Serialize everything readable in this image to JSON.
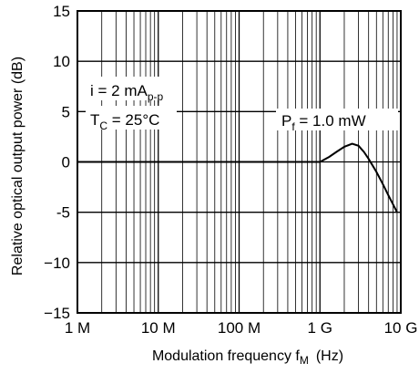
{
  "chart_data": {
    "type": "line",
    "xscale": "log",
    "xlim": [
      1000000,
      10000000000
    ],
    "ylim": [
      -15,
      15
    ],
    "grid": true,
    "ylabel": "Relative optical output power (dB)",
    "xlabel_main": "Modulation frequency f",
    "xlabel_sub": "M",
    "xlabel_unit": "(Hz)",
    "x_ticks": [
      {
        "value": 1000000,
        "label": "1 M"
      },
      {
        "value": 10000000,
        "label": "10 M"
      },
      {
        "value": 100000000,
        "label": "100 M"
      },
      {
        "value": 1000000000,
        "label": "1 G"
      },
      {
        "value": 10000000000,
        "label": "10 G"
      }
    ],
    "y_ticks": [
      {
        "value": 15,
        "label": "15"
      },
      {
        "value": 10,
        "label": "10"
      },
      {
        "value": 5,
        "label": "5"
      },
      {
        "value": 0,
        "label": "0"
      },
      {
        "value": -5,
        "label": "-5"
      },
      {
        "value": -10,
        "label": "−10"
      },
      {
        "value": -15,
        "label": "−15"
      }
    ],
    "annotations": {
      "current_main": "i = 2 mA",
      "current_sub": "p-p",
      "temp_main": "T",
      "temp_sub": "C",
      "temp_value": " = 25°C",
      "power_main": "P",
      "power_sub": "f",
      "power_value": " = 1.0 mW"
    },
    "series": [
      {
        "x": [
          1000000,
          100000000,
          1000000000,
          1300000000,
          1600000000,
          2000000000,
          2500000000,
          3000000000,
          3500000000,
          4000000000,
          5000000000,
          6000000000,
          7000000000,
          8000000000,
          9000000000
        ],
        "y": [
          0,
          0,
          0,
          0.5,
          1,
          1.5,
          1.8,
          1.6,
          1,
          0.3,
          -1,
          -2.2,
          -3.3,
          -4.2,
          -5
        ]
      }
    ]
  }
}
